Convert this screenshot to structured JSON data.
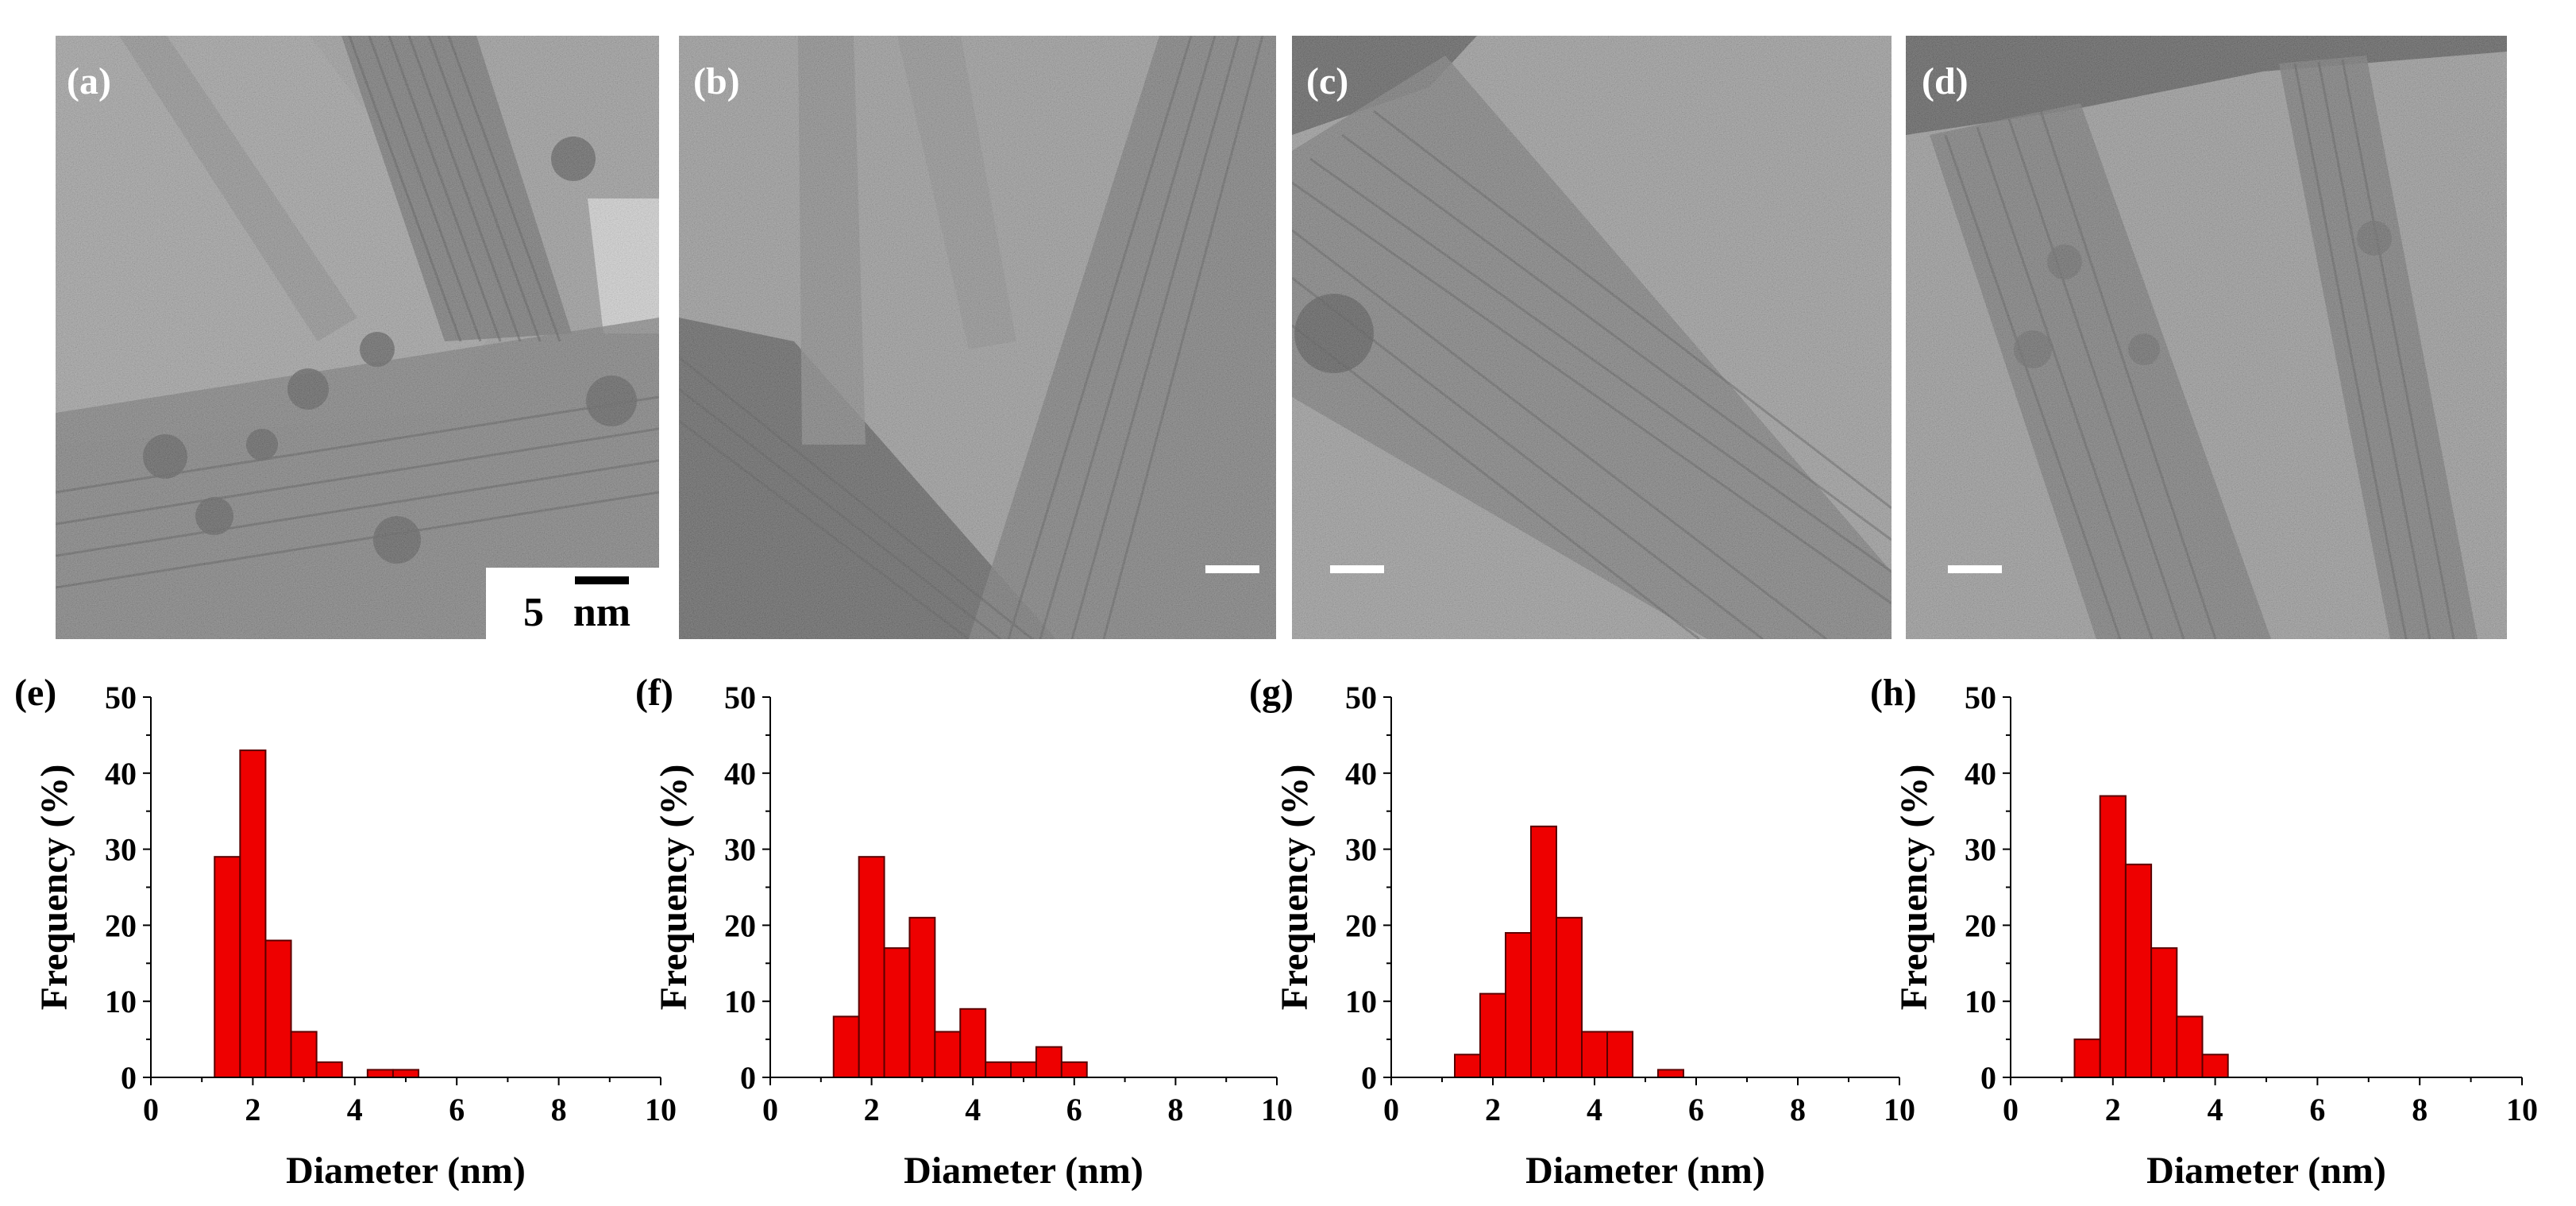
{
  "figure": {
    "colors": {
      "bar_fill": "#ee0000",
      "bar_edge": "#5a0000",
      "axis": "#000000",
      "tem_gray": "#8f8f8f",
      "tem_dark": "#3c3c3c",
      "tem_light": "#c8c8c8",
      "label_text": "#ffffff",
      "scale_bar": "#ffffff"
    },
    "tem_panels": [
      {
        "label": "(a)",
        "scale_bar_value": "5",
        "scale_bar_unit": "nm"
      },
      {
        "label": "(b)"
      },
      {
        "label": "(c)"
      },
      {
        "label": "(d)"
      }
    ],
    "hist_labels": [
      "(e)",
      "(f)",
      "(g)",
      "(h)"
    ]
  },
  "chart_data": [
    {
      "type": "bar",
      "panel": "(e)",
      "xlabel": "Diameter (nm)",
      "ylabel": "Frequency (%)",
      "xlim": [
        0,
        10
      ],
      "ylim": [
        0,
        50
      ],
      "xticks": [
        0,
        2,
        4,
        6,
        8,
        10
      ],
      "yticks": [
        0,
        10,
        20,
        30,
        40,
        50
      ],
      "bin_width": 0.5,
      "bin_starts": [
        1.25,
        1.75,
        2.25,
        2.75,
        3.25,
        4.25,
        4.75
      ],
      "values": [
        29,
        43,
        18,
        6,
        2,
        1,
        1
      ]
    },
    {
      "type": "bar",
      "panel": "(f)",
      "xlabel": "Diameter (nm)",
      "ylabel": "Frequency (%)",
      "xlim": [
        0,
        10
      ],
      "ylim": [
        0,
        50
      ],
      "xticks": [
        0,
        2,
        4,
        6,
        8,
        10
      ],
      "yticks": [
        0,
        10,
        20,
        30,
        40,
        50
      ],
      "bin_width": 0.5,
      "bin_starts": [
        1.25,
        1.75,
        2.25,
        2.75,
        3.25,
        3.75,
        4.25,
        4.75,
        5.25,
        5.75
      ],
      "values": [
        8,
        29,
        17,
        21,
        6,
        9,
        2,
        2,
        4,
        2
      ]
    },
    {
      "type": "bar",
      "panel": "(g)",
      "xlabel": "Diameter (nm)",
      "ylabel": "Frequency (%)",
      "xlim": [
        0,
        10
      ],
      "ylim": [
        0,
        50
      ],
      "xticks": [
        0,
        2,
        4,
        6,
        8,
        10
      ],
      "yticks": [
        0,
        10,
        20,
        30,
        40,
        50
      ],
      "bin_width": 0.5,
      "bin_starts": [
        1.25,
        1.75,
        2.25,
        2.75,
        3.25,
        3.75,
        4.25,
        5.25
      ],
      "values": [
        3,
        11,
        19,
        33,
        21,
        6,
        6,
        1
      ]
    },
    {
      "type": "bar",
      "panel": "(h)",
      "xlabel": "Diameter (nm)",
      "ylabel": "Frequency (%)",
      "xlim": [
        0,
        10
      ],
      "ylim": [
        0,
        50
      ],
      "xticks": [
        0,
        2,
        4,
        6,
        8,
        10
      ],
      "yticks": [
        0,
        10,
        20,
        30,
        40,
        50
      ],
      "bin_width": 0.5,
      "bin_starts": [
        1.25,
        1.75,
        2.25,
        2.75,
        3.25,
        3.75
      ],
      "values": [
        5,
        37,
        28,
        17,
        8,
        3
      ]
    }
  ]
}
